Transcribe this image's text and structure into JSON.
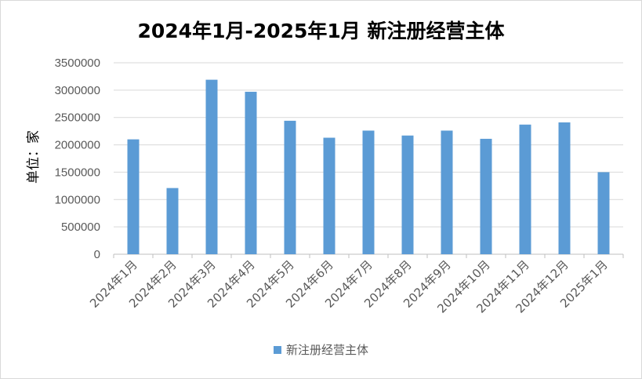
{
  "chart_data": {
    "type": "bar",
    "title": "2024年1月-2025年1月 新注册经营主体",
    "ylabel": "单位：家",
    "xlabel": "",
    "categories": [
      "2024年1月",
      "2024年2月",
      "2024年3月",
      "2024年4月",
      "2024年5月",
      "2024年6月",
      "2024年7月",
      "2024年8月",
      "2024年9月",
      "2024年10月",
      "2024年11月",
      "2024年12月",
      "2025年1月"
    ],
    "series": [
      {
        "name": "新注册经营主体",
        "values": [
          2100000,
          1210000,
          3190000,
          2970000,
          2440000,
          2130000,
          2260000,
          2170000,
          2260000,
          2110000,
          2370000,
          2410000,
          1500000
        ]
      }
    ],
    "ylim": [
      0,
      3500000
    ],
    "yticks": [
      "0",
      "500000",
      "1000000",
      "1500000",
      "2000000",
      "2500000",
      "3000000",
      "3500000"
    ],
    "grid": true,
    "legend_position": "bottom",
    "bar_color": "#5b9bd5"
  }
}
